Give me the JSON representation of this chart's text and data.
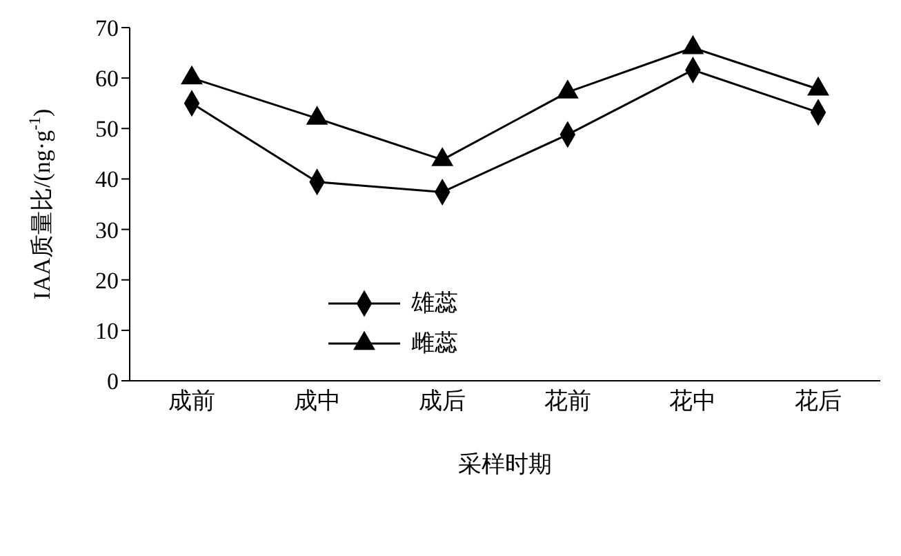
{
  "chart_data": {
    "type": "line",
    "xlabel": "采样时期",
    "ylabel": "IAA质量比/(ng·g$^{-1}$)",
    "categories": [
      "成前",
      "成中",
      "成后",
      "花前",
      "花中",
      "花后"
    ],
    "series": [
      {
        "name": "雄蕊",
        "color": "#000000",
        "marker": "diamond",
        "values": [
          55,
          39.4,
          37.4,
          48.8,
          61.6,
          53.2
        ]
      },
      {
        "name": "雌蕊",
        "color": "#000000",
        "marker": "triangle",
        "values": [
          60,
          52,
          43.8,
          57.2,
          66,
          57.8
        ]
      }
    ],
    "ylim": [
      0,
      70
    ],
    "yticks": [
      0,
      10,
      20,
      30,
      40,
      50,
      60,
      70
    ],
    "grid": false,
    "legend": "center left",
    "line_style": "solid"
  }
}
